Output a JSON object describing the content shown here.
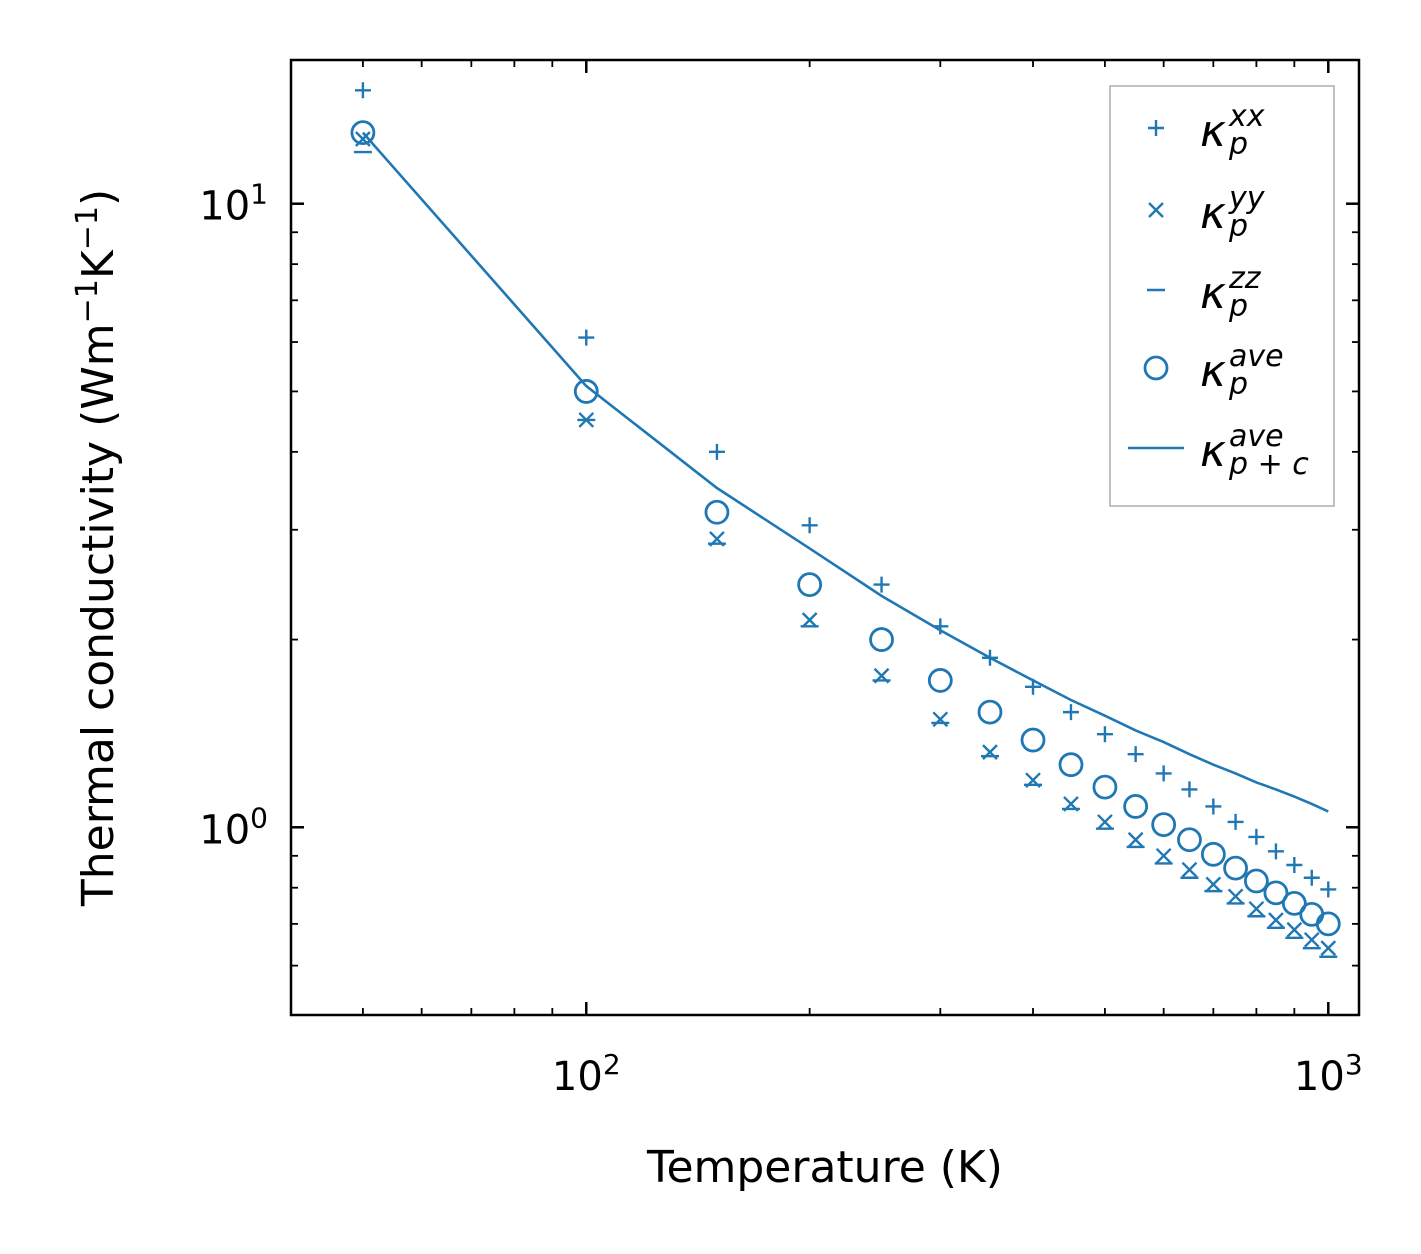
{
  "chart_data": {
    "type": "scatter",
    "x_scale": "log",
    "y_scale": "log",
    "xlabel": "Temperature (K)",
    "ylabel_parts": {
      "base": "Thermal conductivity (Wm",
      "exp1": "−1",
      "mid": "K",
      "exp2": "−1",
      "end": ")"
    },
    "xlim": [
      40,
      1100
    ],
    "ylim": [
      0.5,
      17
    ],
    "x_major_ticks": [
      {
        "value": 100,
        "base": "10",
        "exp": "2"
      },
      {
        "value": 1000,
        "base": "10",
        "exp": "3"
      }
    ],
    "y_major_ticks": [
      {
        "value": 1,
        "base": "10",
        "exp": "0"
      },
      {
        "value": 10,
        "base": "10",
        "exp": "1"
      }
    ],
    "x": [
      50,
      100,
      150,
      200,
      250,
      300,
      350,
      400,
      450,
      500,
      550,
      600,
      650,
      700,
      750,
      800,
      850,
      900,
      950,
      1000
    ],
    "series": [
      {
        "name": "kappa_p_xx",
        "marker": "plus",
        "values": [
          15.2,
          6.1,
          4.0,
          3.05,
          2.45,
          2.1,
          1.87,
          1.68,
          1.53,
          1.41,
          1.31,
          1.22,
          1.15,
          1.08,
          1.02,
          0.965,
          0.915,
          0.87,
          0.83,
          0.795
        ]
      },
      {
        "name": "kappa_p_yy",
        "marker": "x",
        "values": [
          12.7,
          4.5,
          2.9,
          2.15,
          1.75,
          1.49,
          1.32,
          1.19,
          1.09,
          1.02,
          0.955,
          0.9,
          0.855,
          0.81,
          0.775,
          0.74,
          0.71,
          0.685,
          0.66,
          0.64
        ]
      },
      {
        "name": "kappa_p_zz",
        "marker": "dash",
        "values": [
          12.1,
          4.5,
          2.85,
          2.1,
          1.72,
          1.47,
          1.3,
          1.17,
          1.07,
          0.995,
          0.93,
          0.875,
          0.83,
          0.79,
          0.755,
          0.72,
          0.69,
          0.665,
          0.64,
          0.62
        ]
      },
      {
        "name": "kappa_p_ave",
        "marker": "circle",
        "values": [
          13.0,
          5.0,
          3.2,
          2.45,
          2.0,
          1.72,
          1.53,
          1.38,
          1.26,
          1.16,
          1.08,
          1.01,
          0.955,
          0.905,
          0.86,
          0.82,
          0.785,
          0.755,
          0.725,
          0.7
        ]
      },
      {
        "name": "kappa_pc_ave",
        "marker": "line",
        "values": [
          13.0,
          5.1,
          3.5,
          2.8,
          2.35,
          2.07,
          1.87,
          1.72,
          1.6,
          1.51,
          1.43,
          1.37,
          1.31,
          1.26,
          1.22,
          1.18,
          1.15,
          1.12,
          1.09,
          1.06
        ]
      }
    ],
    "legend_position": "top-right",
    "legend": [
      {
        "symbol": "plus",
        "base": "κ",
        "sup": "xx",
        "sub": "p"
      },
      {
        "symbol": "x",
        "base": "κ",
        "sup": "yy",
        "sub": "p"
      },
      {
        "symbol": "dash",
        "base": "κ",
        "sup": "zz",
        "sub": "p"
      },
      {
        "symbol": "circle",
        "base": "κ",
        "sup": "ave",
        "sub": "p"
      },
      {
        "symbol": "line",
        "base": "κ",
        "sup": "ave",
        "sub": "p + c"
      }
    ],
    "color": "#1f77b4"
  }
}
